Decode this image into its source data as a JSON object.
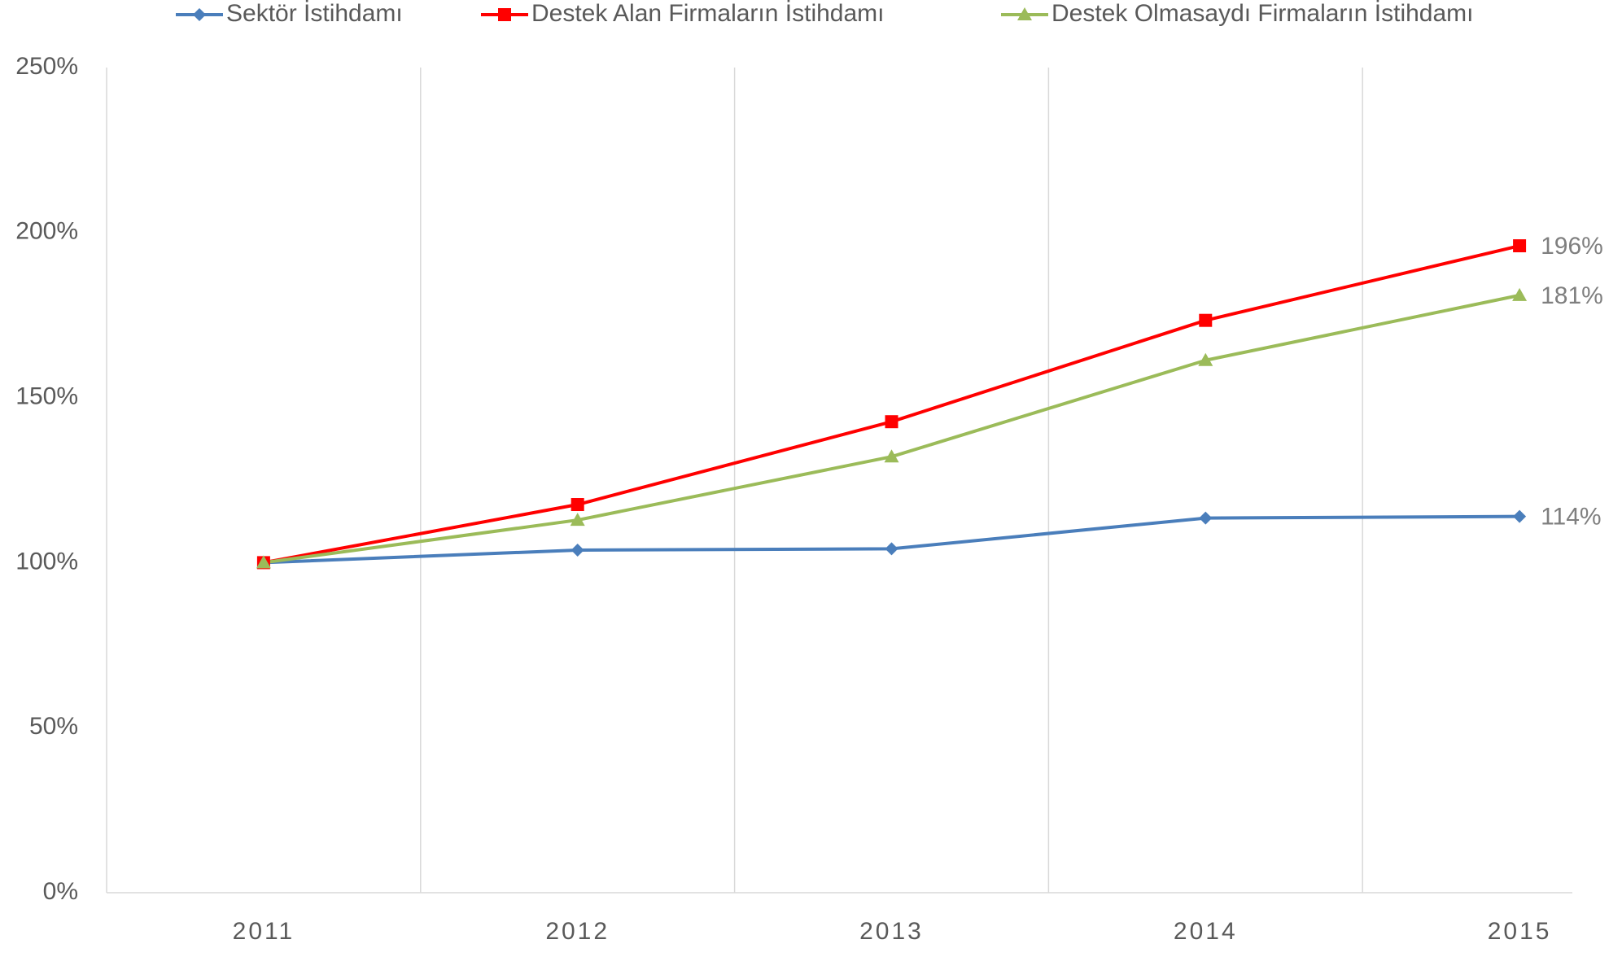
{
  "chart_data": {
    "type": "line",
    "categories": [
      "2011",
      "2012",
      "2013",
      "2014",
      "2015"
    ],
    "series": [
      {
        "name": "Sektör İstihdamı",
        "color": "#4a7ebb",
        "marker": "diamond",
        "values": [
          100,
          103.8,
          104.2,
          113.5,
          114
        ],
        "value_labels": [
          null,
          null,
          null,
          null,
          "114%"
        ]
      },
      {
        "name": "Destek Alan Firmaların İstihdamı",
        "color": "#ff0000",
        "marker": "square",
        "values": [
          100,
          117.6,
          142.7,
          173.4,
          196
        ],
        "value_labels": [
          null,
          null,
          null,
          null,
          "196%"
        ]
      },
      {
        "name": "Destek Olmasaydı Firmaların İstihdamı",
        "color": "#9bbb59",
        "marker": "triangle",
        "values": [
          100,
          112.9,
          132.1,
          161.3,
          181
        ],
        "value_labels": [
          null,
          null,
          null,
          null,
          "181%"
        ]
      }
    ],
    "ylim": [
      0,
      250
    ],
    "yticks": [
      {
        "value": 0,
        "label": "0%"
      },
      {
        "value": 50,
        "label": "50%"
      },
      {
        "value": 100,
        "label": "100%"
      },
      {
        "value": 150,
        "label": "150%"
      },
      {
        "value": 200,
        "label": "200%"
      },
      {
        "value": 250,
        "label": "250%"
      }
    ],
    "legend": "top"
  }
}
